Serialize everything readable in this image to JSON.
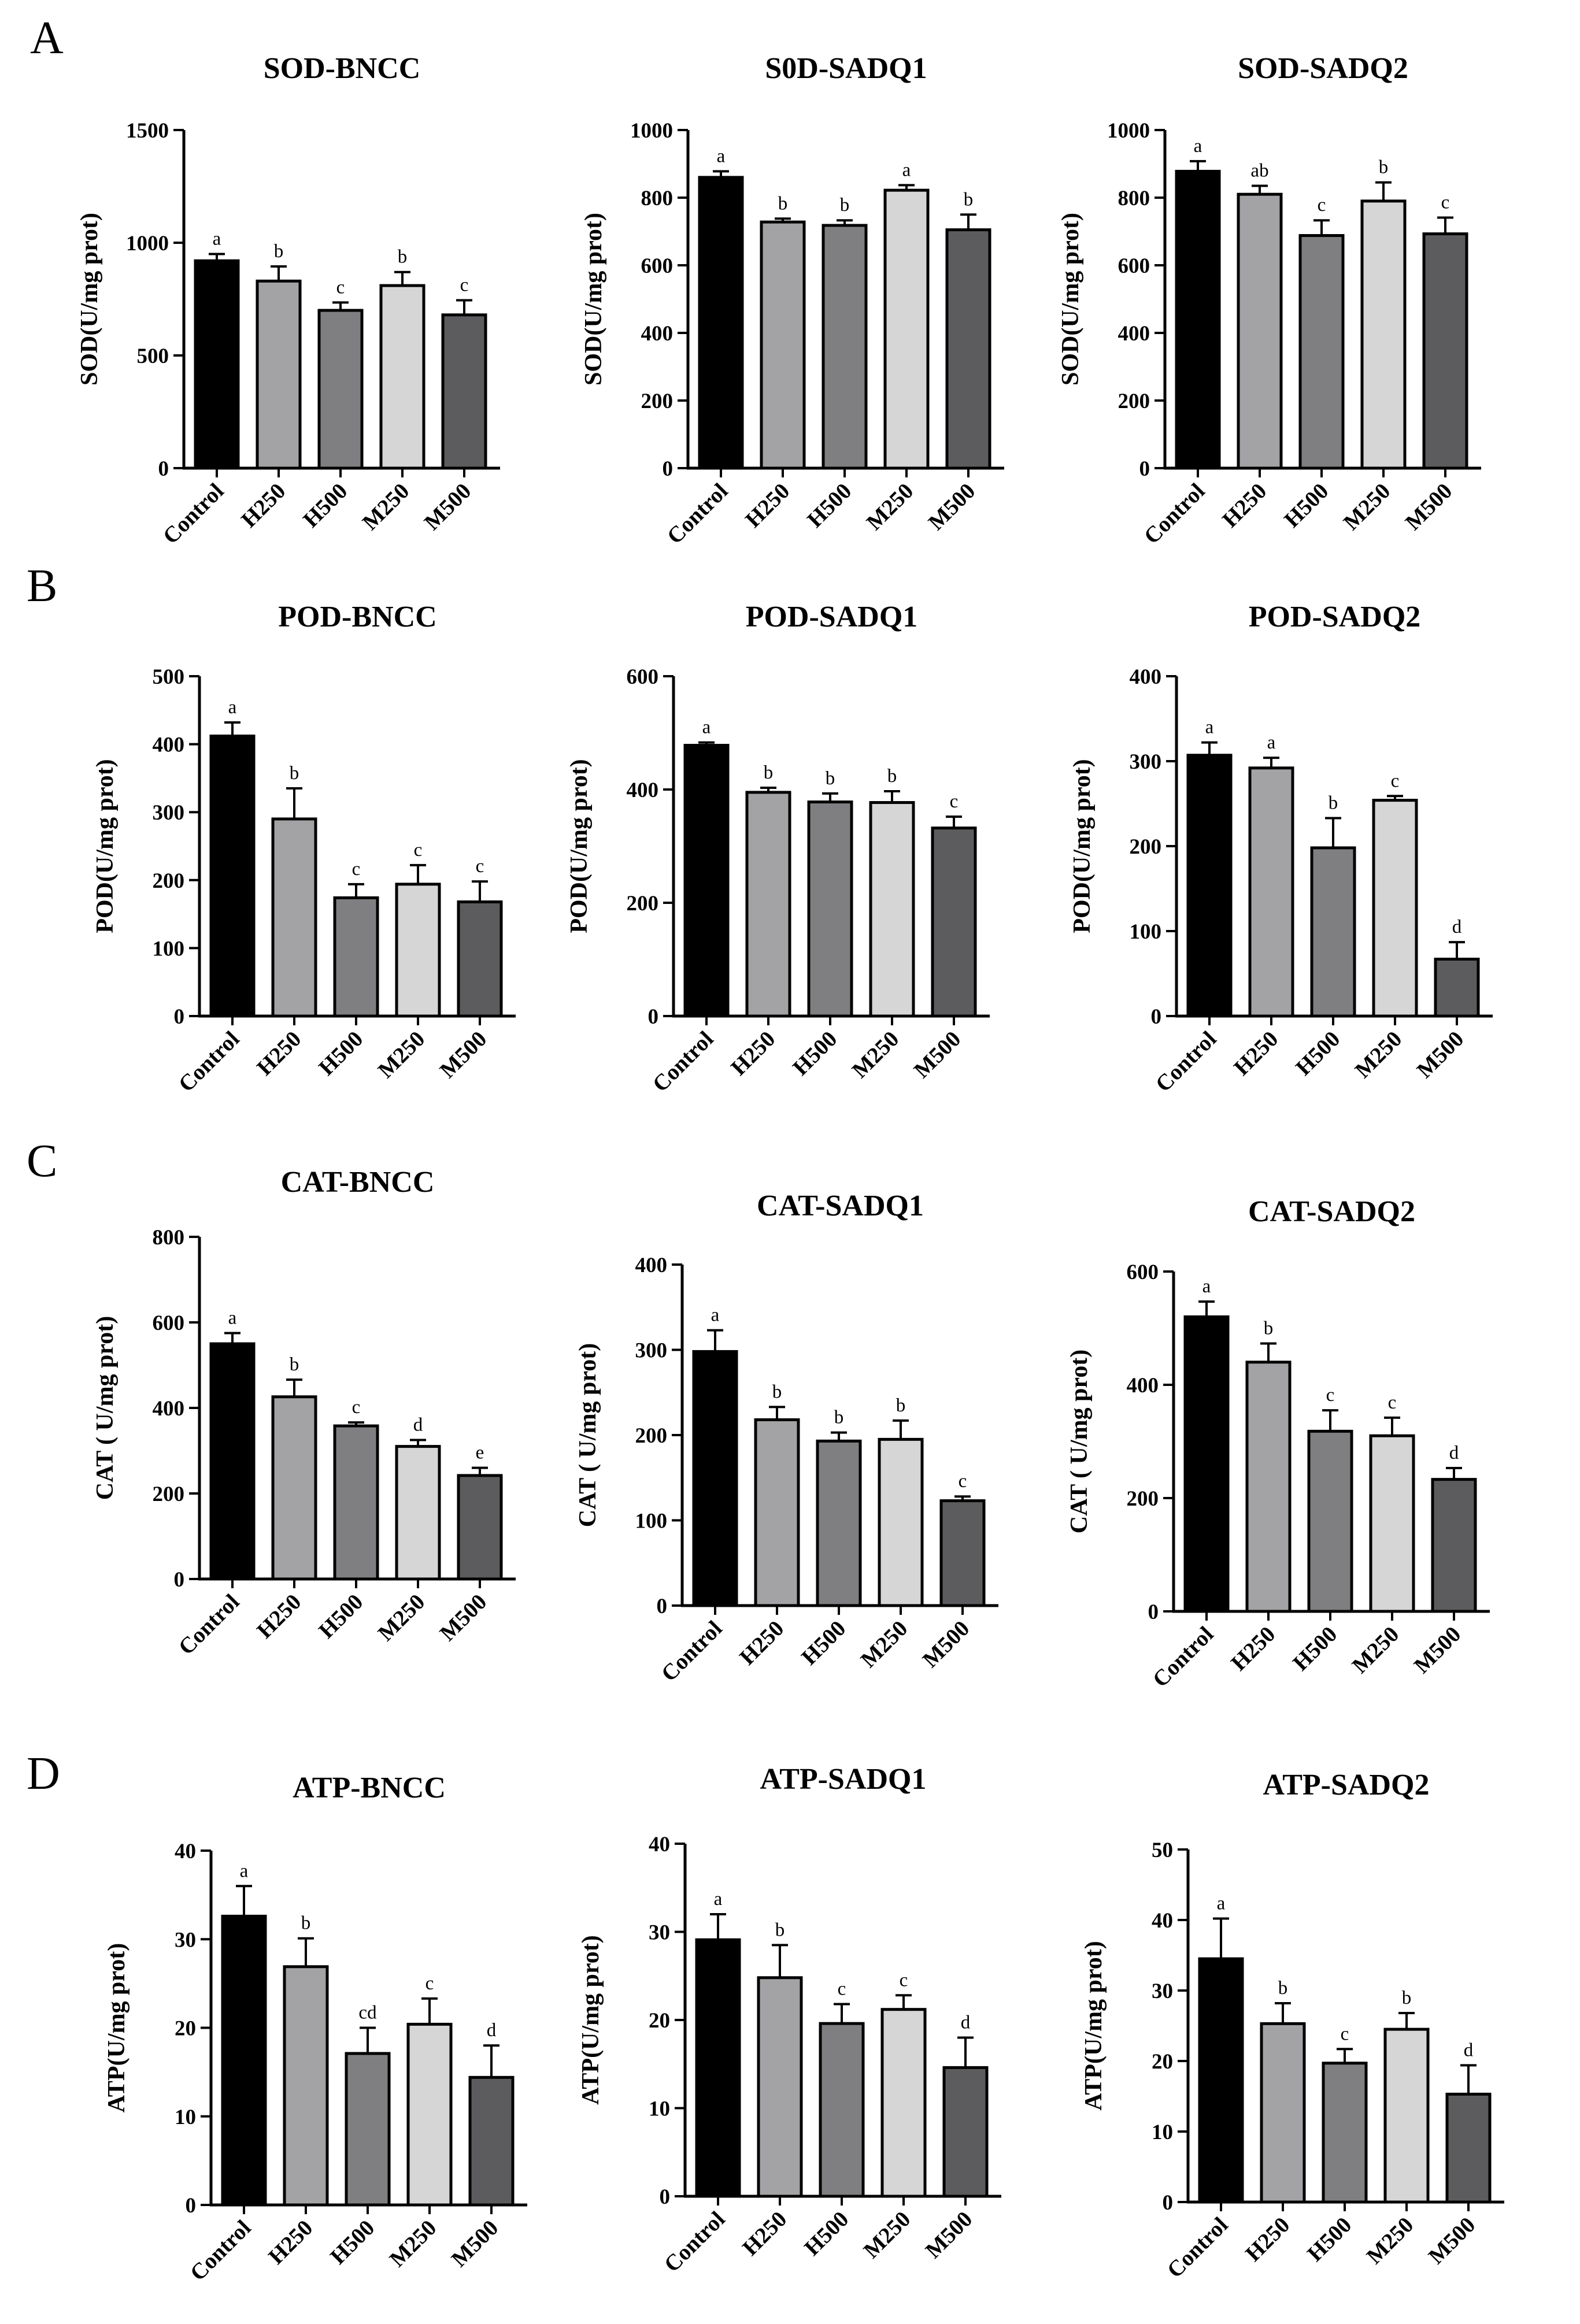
{
  "colors": {
    "Control": "#000000",
    "H250": "#a3a3a6",
    "H500": "#7f7f81",
    "M250": "#d6d6d6",
    "M500": "#5c5c5e",
    "axis": "#000000",
    "background": "#ffffff"
  },
  "panel_labels": [
    "A",
    "B",
    "C",
    "D"
  ],
  "chart_data": [
    {
      "type": "bar",
      "panel": "A",
      "title": "SOD-BNCC",
      "ylabel": "SOD(U/mg prot)",
      "ylim": [
        0,
        1500
      ],
      "yticks": [
        0,
        500,
        1000,
        1500
      ],
      "categories": [
        "Control",
        "H250",
        "H500",
        "M250",
        "M500"
      ],
      "values": [
        920,
        830,
        700,
        810,
        680
      ],
      "errors": [
        30,
        65,
        35,
        60,
        65
      ],
      "letters": [
        "a",
        "b",
        "c",
        "b",
        "c"
      ]
    },
    {
      "type": "bar",
      "panel": "A",
      "title": "S0D-SADQ1",
      "ylabel": "SOD(U/mg prot)",
      "ylim": [
        0,
        1000
      ],
      "yticks": [
        0,
        200,
        400,
        600,
        800,
        1000
      ],
      "categories": [
        "Control",
        "H250",
        "H500",
        "M250",
        "M500"
      ],
      "values": [
        860,
        728,
        718,
        822,
        705
      ],
      "errors": [
        18,
        10,
        15,
        15,
        45
      ],
      "letters": [
        "a",
        "b",
        "b",
        "a",
        "b"
      ]
    },
    {
      "type": "bar",
      "panel": "A",
      "title": "SOD-SADQ2",
      "ylabel": "SOD(U/mg prot)",
      "ylim": [
        0,
        1000
      ],
      "yticks": [
        0,
        200,
        400,
        600,
        800,
        1000
      ],
      "categories": [
        "Control",
        "H250",
        "H500",
        "M250",
        "M500"
      ],
      "values": [
        878,
        810,
        688,
        790,
        693
      ],
      "errors": [
        30,
        25,
        45,
        55,
        48
      ],
      "letters": [
        "a",
        "ab",
        "c",
        "b",
        "c"
      ]
    },
    {
      "type": "bar",
      "panel": "B",
      "title": "POD-BNCC",
      "ylabel": "POD(U/mg prot)",
      "ylim": [
        0,
        500
      ],
      "yticks": [
        0,
        100,
        200,
        300,
        400,
        500
      ],
      "categories": [
        "Control",
        "H250",
        "H500",
        "M250",
        "M500"
      ],
      "values": [
        412,
        290,
        174,
        194,
        168
      ],
      "errors": [
        20,
        45,
        20,
        28,
        30
      ],
      "letters": [
        "a",
        "b",
        "c",
        "c",
        "c"
      ]
    },
    {
      "type": "bar",
      "panel": "B",
      "title": "POD-SADQ1",
      "ylabel": "POD(U/mg prot)",
      "ylim": [
        0,
        600
      ],
      "yticks": [
        0,
        200,
        400,
        600
      ],
      "categories": [
        "Control",
        "H250",
        "H500",
        "M250",
        "M500"
      ],
      "values": [
        478,
        395,
        378,
        377,
        332
      ],
      "errors": [
        5,
        8,
        15,
        20,
        20
      ],
      "letters": [
        "a",
        "b",
        "b",
        "b",
        "c"
      ]
    },
    {
      "type": "bar",
      "panel": "B",
      "title": "POD-SADQ2",
      "ylabel": "POD(U/mg prot)",
      "ylim": [
        0,
        400
      ],
      "yticks": [
        0,
        100,
        200,
        300,
        400
      ],
      "categories": [
        "Control",
        "H250",
        "H500",
        "M250",
        "M500"
      ],
      "values": [
        307,
        292,
        198,
        254,
        67
      ],
      "errors": [
        15,
        12,
        35,
        5,
        20
      ],
      "letters": [
        "a",
        "a",
        "b",
        "c",
        "d"
      ]
    },
    {
      "type": "bar",
      "panel": "C",
      "title": "CAT-BNCC",
      "ylabel": "CAT ( U/mg prot)",
      "ylim": [
        0,
        800
      ],
      "yticks": [
        0,
        200,
        400,
        600,
        800
      ],
      "categories": [
        "Control",
        "H250",
        "H500",
        "M250",
        "M500"
      ],
      "values": [
        550,
        426,
        358,
        310,
        242
      ],
      "errors": [
        25,
        40,
        8,
        15,
        18
      ],
      "letters": [
        "a",
        "b",
        "c",
        "d",
        "e"
      ]
    },
    {
      "type": "bar",
      "panel": "C",
      "title": "CAT-SADQ1",
      "ylabel": "CAT ( U/mg prot)",
      "ylim": [
        0,
        400
      ],
      "yticks": [
        0,
        100,
        200,
        300,
        400
      ],
      "categories": [
        "Control",
        "H250",
        "H500",
        "M250",
        "M500"
      ],
      "values": [
        298,
        218,
        193,
        195,
        123
      ],
      "errors": [
        25,
        15,
        10,
        22,
        5
      ],
      "letters": [
        "a",
        "b",
        "b",
        "b",
        "c"
      ]
    },
    {
      "type": "bar",
      "panel": "C",
      "title": "CAT-SADQ2",
      "ylabel": "CAT ( U/mg prot)",
      "ylim": [
        0,
        600
      ],
      "yticks": [
        0,
        200,
        400,
        600
      ],
      "categories": [
        "Control",
        "H250",
        "H500",
        "M250",
        "M500"
      ],
      "values": [
        520,
        440,
        318,
        310,
        233
      ],
      "errors": [
        27,
        33,
        37,
        32,
        20
      ],
      "letters": [
        "a",
        "b",
        "c",
        "c",
        "d"
      ]
    },
    {
      "type": "bar",
      "panel": "D",
      "title": "ATP-BNCC",
      "ylabel": "ATP(U/mg prot)",
      "ylim": [
        0,
        40
      ],
      "yticks": [
        0,
        10,
        20,
        30,
        40
      ],
      "categories": [
        "Control",
        "H250",
        "H500",
        "M250",
        "M500"
      ],
      "values": [
        32.6,
        26.9,
        17.1,
        20.4,
        14.4
      ],
      "errors": [
        3.4,
        3.2,
        2.9,
        2.9,
        3.6
      ],
      "letters": [
        "a",
        "b",
        "cd",
        "c",
        "d"
      ]
    },
    {
      "type": "bar",
      "panel": "D",
      "title": "ATP-SADQ1",
      "ylabel": "ATP(U/mg prot)",
      "ylim": [
        0,
        40
      ],
      "yticks": [
        0,
        10,
        20,
        30,
        40
      ],
      "categories": [
        "Control",
        "H250",
        "H500",
        "M250",
        "M500"
      ],
      "values": [
        29.1,
        24.8,
        19.6,
        21.2,
        14.6
      ],
      "errors": [
        2.9,
        3.7,
        2.2,
        1.6,
        3.4
      ],
      "letters": [
        "a",
        "b",
        "c",
        "c",
        "d"
      ]
    },
    {
      "type": "bar",
      "panel": "D",
      "title": "ATP-SADQ2",
      "ylabel": "ATP(U/mg prot)",
      "ylim": [
        0,
        50
      ],
      "yticks": [
        0,
        10,
        20,
        30,
        40,
        50
      ],
      "categories": [
        "Control",
        "H250",
        "H500",
        "M250",
        "M500"
      ],
      "values": [
        34.5,
        25.3,
        19.7,
        24.5,
        15.3
      ],
      "errors": [
        5.7,
        2.9,
        2.0,
        2.3,
        4.1
      ],
      "letters": [
        "a",
        "b",
        "c",
        "b",
        "d"
      ]
    }
  ]
}
